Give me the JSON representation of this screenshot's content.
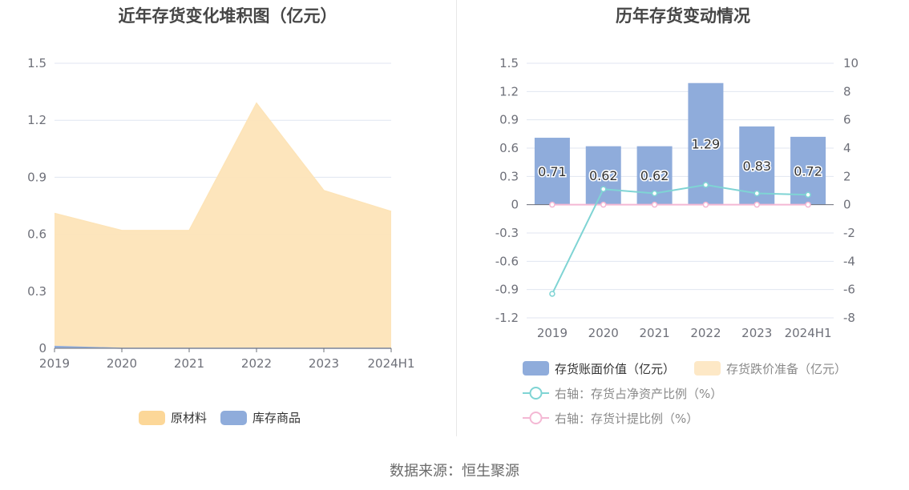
{
  "left_chart": {
    "title": "近年存货变化堆积图（亿元）",
    "legend": [
      {
        "name": "原材料",
        "color": "#fcd798"
      },
      {
        "name": "库存商品",
        "color": "#8facdb"
      }
    ]
  },
  "right_chart": {
    "title": "历年存货变动情况",
    "legend": [
      {
        "name": "存货账面价值（亿元）",
        "color": "#8facdb",
        "kind": "bar"
      },
      {
        "name": "存货跌价准备（亿元）",
        "color": "#fde8c6",
        "kind": "bar"
      },
      {
        "name": "右轴：存货占净资产比例（%）",
        "color": "#7fd4d4",
        "kind": "line"
      },
      {
        "name": "右轴：存货计提比例（%）",
        "color": "#f4b8d4",
        "kind": "line"
      }
    ]
  },
  "source": "数据来源：恒生聚源",
  "chart_data": [
    {
      "type": "area",
      "stacked": true,
      "title": "近年存货变化堆积图（亿元）",
      "categories": [
        "2019",
        "2020",
        "2021",
        "2022",
        "2023",
        "2024H1"
      ],
      "y_ticks": [
        "0",
        "0.3",
        "0.6",
        "0.9",
        "1.2",
        "1.5"
      ],
      "ylim": [
        0,
        1.5
      ],
      "series": [
        {
          "name": "库存商品",
          "color": "#8facdb",
          "values": [
            0.01,
            0.0,
            0.0,
            0.0,
            0.0,
            0.0
          ]
        },
        {
          "name": "原材料",
          "color": "#fde4b8",
          "values": [
            0.7,
            0.62,
            0.62,
            1.29,
            0.83,
            0.72
          ]
        }
      ],
      "grid": true,
      "legend_position": "bottom"
    },
    {
      "type": "bar",
      "title": "历年存货变动情况",
      "categories": [
        "2019",
        "2020",
        "2021",
        "2022",
        "2023",
        "2024H1"
      ],
      "y_ticks": [
        "-1.2",
        "-0.9",
        "-0.6",
        "-0.3",
        "0",
        "0.3",
        "0.6",
        "0.9",
        "1.2",
        "1.5"
      ],
      "ylim": [
        -1.2,
        1.5
      ],
      "y2_ticks": [
        "-8",
        "-6",
        "-4",
        "-2",
        "0",
        "2",
        "4",
        "6",
        "8",
        "10"
      ],
      "y2lim": [
        -8,
        10
      ],
      "series": [
        {
          "name": "存货账面价值（亿元）",
          "color": "#8facdb",
          "axis": "left",
          "kind": "bar",
          "values": [
            0.71,
            0.62,
            0.62,
            1.29,
            0.83,
            0.72
          ],
          "labels": [
            "0.71",
            "0.62",
            "0.62",
            "1.29",
            "0.83",
            "0.72"
          ]
        },
        {
          "name": "存货跌价准备（亿元）",
          "color": "#fde8c6",
          "axis": "left",
          "kind": "bar",
          "values": [
            0,
            0,
            0,
            0,
            0,
            0
          ]
        },
        {
          "name": "右轴：存货占净资产比例（%）",
          "color": "#7fd4d4",
          "axis": "right",
          "kind": "line",
          "values": [
            -6.3,
            1.1,
            0.8,
            1.4,
            0.8,
            0.7
          ]
        },
        {
          "name": "右轴：存货计提比例（%）",
          "color": "#f4b8d4",
          "axis": "right",
          "kind": "line",
          "values": [
            0,
            0,
            0,
            0,
            0,
            0
          ]
        }
      ],
      "grid": true,
      "legend_position": "bottom"
    }
  ]
}
